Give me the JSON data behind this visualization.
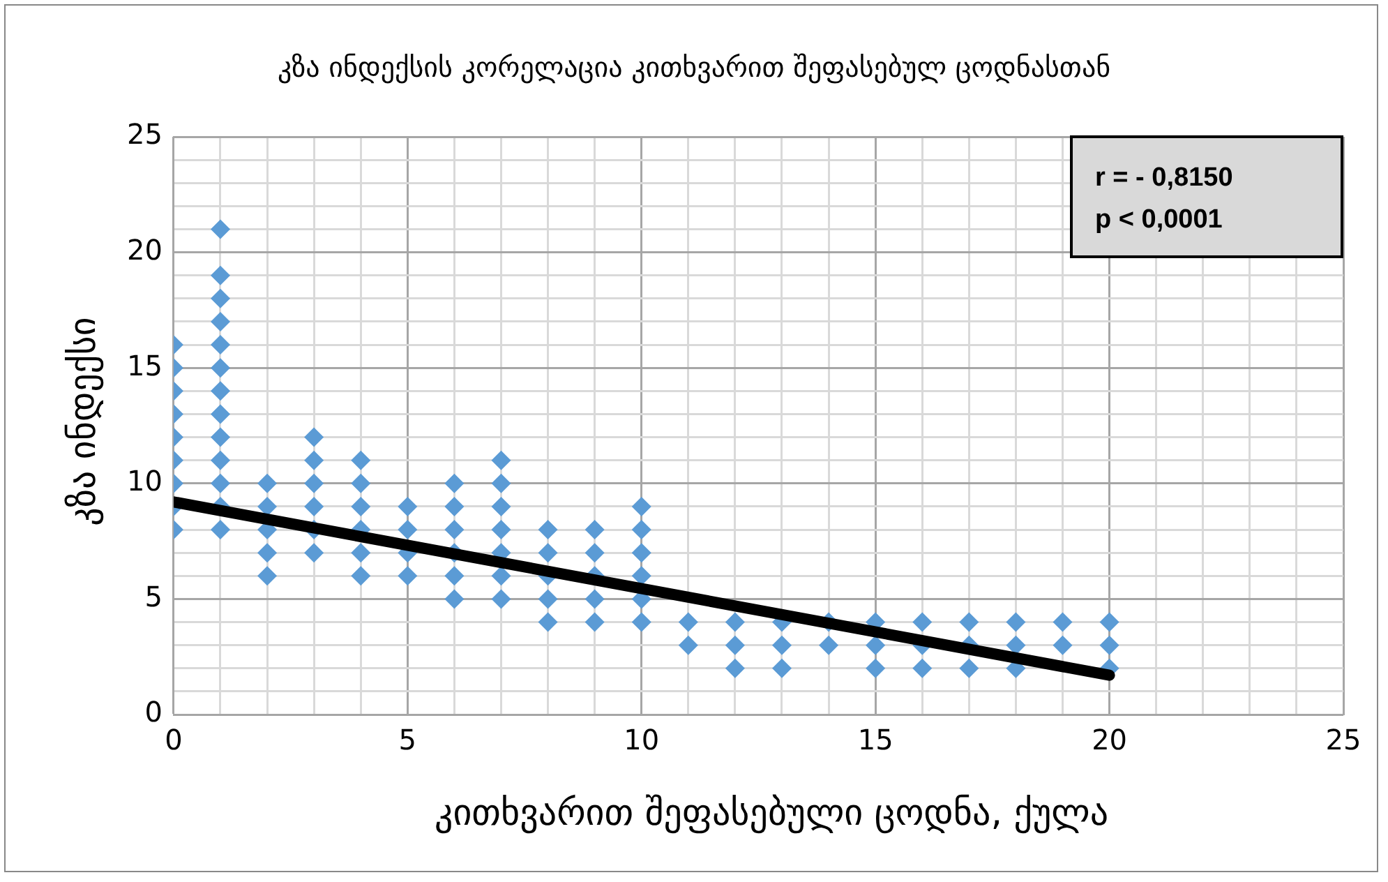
{
  "chart_data": {
    "type": "scatter",
    "title": "კზა ინდექსის კორელაცია კითხვარით შეფასებულ ცოდნასთან",
    "xlabel": "კითხვარით შეფასებული ცოდნა, ქულა",
    "ylabel": "კზა ინდექსი",
    "annotations": [
      "r = - 0,8150\np < 0,0001"
    ],
    "xlim": [
      0,
      25
    ],
    "ylim": [
      0,
      25
    ],
    "xticks": [
      0,
      {
        "value": 1,
        "label": null
      },
      {
        "value": 2,
        "label": null
      },
      {
        "value": 3,
        "label": null
      },
      {
        "value": 4,
        "label": null
      },
      5,
      {
        "value": 6,
        "label": null
      },
      {
        "value": 7,
        "label": null
      },
      {
        "value": 8,
        "label": null
      },
      {
        "value": 9,
        "label": null
      },
      10,
      {
        "value": 11,
        "label": null
      },
      {
        "value": 12,
        "label": null
      },
      {
        "value": 13,
        "label": null
      },
      {
        "value": 14,
        "label": null
      },
      15,
      {
        "value": 16,
        "label": null
      },
      {
        "value": 17,
        "label": null
      },
      {
        "value": 18,
        "label": null
      },
      {
        "value": 19,
        "label": null
      },
      20,
      {
        "value": 21,
        "label": null
      },
      {
        "value": 22,
        "label": null
      },
      {
        "value": 23,
        "label": null
      },
      {
        "value": 24,
        "label": null
      },
      25
    ],
    "yticks": [
      0,
      {
        "value": 1,
        "label": null
      },
      {
        "value": 2,
        "label": null
      },
      {
        "value": 3,
        "label": null
      },
      {
        "value": 4,
        "label": null
      },
      5,
      {
        "value": 6,
        "label": null
      },
      {
        "value": 7,
        "label": null
      },
      {
        "value": 8,
        "label": null
      },
      {
        "value": 9,
        "label": null
      },
      10,
      {
        "value": 11,
        "label": null
      },
      {
        "value": 12,
        "label": null
      },
      {
        "value": 13,
        "label": null
      },
      {
        "value": 14,
        "label": null
      },
      15,
      {
        "value": 16,
        "label": null
      },
      {
        "value": 17,
        "label": null
      },
      {
        "value": 18,
        "label": null
      },
      {
        "value": 19,
        "label": null
      },
      20,
      {
        "value": 21,
        "label": null
      },
      {
        "value": 22,
        "label": null
      },
      {
        "value": 23,
        "label": null
      },
      {
        "value": 24,
        "label": null
      },
      25
    ],
    "grid": true,
    "legend": false,
    "marker": "diamond",
    "series": [
      {
        "color": "#5b9bd5",
        "x": [
          0,
          0,
          0,
          0,
          0,
          0,
          0,
          0,
          0,
          1,
          1,
          1,
          1,
          1,
          1,
          1,
          1,
          1,
          1,
          1,
          1,
          1,
          2,
          2,
          2,
          2,
          2,
          3,
          3,
          3,
          3,
          3,
          3,
          4,
          4,
          4,
          4,
          4,
          4,
          5,
          5,
          5,
          5,
          6,
          6,
          6,
          6,
          6,
          6,
          7,
          7,
          7,
          7,
          7,
          7,
          7,
          8,
          8,
          8,
          8,
          8,
          9,
          9,
          9,
          9,
          9,
          10,
          10,
          10,
          10,
          10,
          10,
          11,
          11,
          12,
          12,
          12,
          13,
          13,
          13,
          14,
          14,
          15,
          15,
          15,
          16,
          16,
          16,
          17,
          17,
          17,
          18,
          18,
          18,
          19,
          19,
          20,
          20,
          20
        ],
        "values": [
          8,
          9,
          10,
          11,
          12,
          13,
          14,
          15,
          16,
          8,
          9,
          10,
          11,
          12,
          13,
          14,
          15,
          16,
          17,
          18,
          19,
          21,
          6,
          7,
          8,
          9,
          10,
          7,
          8,
          9,
          10,
          11,
          12,
          6,
          7,
          8,
          9,
          10,
          11,
          6,
          7,
          8,
          9,
          5,
          6,
          7,
          8,
          9,
          10,
          5,
          6,
          7,
          8,
          9,
          10,
          11,
          4,
          5,
          6,
          7,
          8,
          4,
          5,
          6,
          7,
          8,
          4,
          5,
          6,
          7,
          8,
          9,
          3,
          4,
          2,
          3,
          4,
          2,
          3,
          4,
          3,
          4,
          2,
          3,
          4,
          2,
          3,
          4,
          2,
          3,
          4,
          2,
          3,
          4,
          3,
          4,
          2,
          3,
          4
        ]
      },
      {
        "type": "line",
        "color": "#000000",
        "line_style": "solid",
        "marker": "none",
        "x": [
          0,
          20
        ],
        "values": [
          9.2,
          1.7
        ]
      }
    ]
  }
}
